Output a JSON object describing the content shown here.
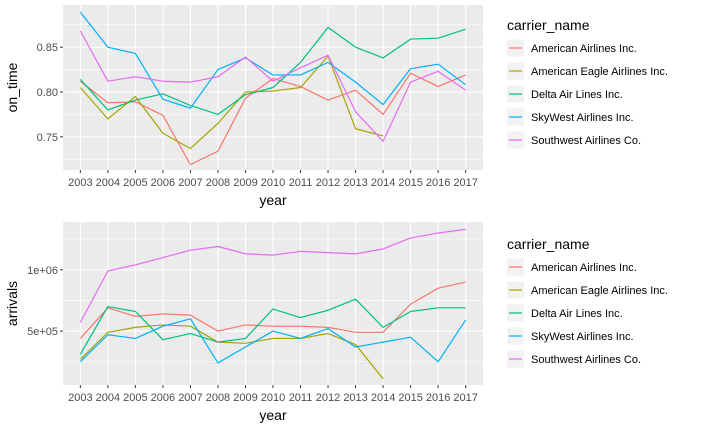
{
  "chart_data": [
    {
      "type": "line",
      "xlabel": "year",
      "ylabel": "on_time",
      "legend_title": "carrier_name",
      "legend_position": "right",
      "grid": true,
      "x": [
        2003,
        2004,
        2005,
        2006,
        2007,
        2008,
        2009,
        2010,
        2011,
        2012,
        2013,
        2014,
        2015,
        2016,
        2017
      ],
      "x_ticks": [
        "2003",
        "2004",
        "2005",
        "2006",
        "2007",
        "2008",
        "2009",
        "2010",
        "2011",
        "2012",
        "2013",
        "2014",
        "2015",
        "2016",
        "2017"
      ],
      "y_ticks": [
        {
          "value": 0.75,
          "label": "0.75"
        },
        {
          "value": 0.8,
          "label": "0.80"
        },
        {
          "value": 0.85,
          "label": "0.85"
        }
      ],
      "ylim": [
        0.713,
        0.897
      ],
      "series": [
        {
          "name": "American Airlines Inc.",
          "color": "#F8766D",
          "values": [
            0.812,
            0.788,
            0.789,
            0.774,
            0.719,
            0.734,
            0.793,
            0.815,
            0.806,
            0.791,
            0.802,
            0.775,
            0.821,
            0.806,
            0.819
          ]
        },
        {
          "name": "American Eagle Airlines Inc.",
          "color": "#A3A500",
          "values": [
            0.805,
            0.77,
            0.795,
            0.754,
            0.737,
            0.765,
            0.8,
            0.801,
            0.805,
            0.84,
            0.759,
            0.751,
            null,
            null,
            null
          ]
        },
        {
          "name": "Delta Air Lines Inc.",
          "color": "#00BF7D",
          "values": [
            0.814,
            0.78,
            0.791,
            0.798,
            0.785,
            0.775,
            0.797,
            0.805,
            0.833,
            0.872,
            0.85,
            0.838,
            0.859,
            0.86,
            0.87
          ]
        },
        {
          "name": "SkyWest Airlines Inc.",
          "color": "#00B0F6",
          "values": [
            0.889,
            0.85,
            0.843,
            0.792,
            0.782,
            0.825,
            0.838,
            0.819,
            0.819,
            0.833,
            0.811,
            0.786,
            0.826,
            0.831,
            0.808
          ]
        },
        {
          "name": "Southwest Airlines Co.",
          "color": "#E76BF3",
          "values": [
            0.868,
            0.812,
            0.817,
            0.812,
            0.811,
            0.817,
            0.839,
            0.812,
            0.827,
            0.841,
            0.778,
            0.745,
            0.811,
            0.823,
            0.802
          ]
        }
      ]
    },
    {
      "type": "line",
      "xlabel": "year",
      "ylabel": "arrivals",
      "legend_title": "carrier_name",
      "legend_position": "right",
      "grid": true,
      "x": [
        2003,
        2004,
        2005,
        2006,
        2007,
        2008,
        2009,
        2010,
        2011,
        2012,
        2013,
        2014,
        2015,
        2016,
        2017
      ],
      "x_ticks": [
        "2003",
        "2004",
        "2005",
        "2006",
        "2007",
        "2008",
        "2009",
        "2010",
        "2011",
        "2012",
        "2013",
        "2014",
        "2015",
        "2016",
        "2017"
      ],
      "y_ticks": [
        {
          "value": 500000,
          "label": "5e+05"
        },
        {
          "value": 1000000,
          "label": "1e+06"
        }
      ],
      "ylim": [
        60000,
        1390000
      ],
      "series": [
        {
          "name": "American Airlines Inc.",
          "color": "#F8766D",
          "values": [
            440000,
            690000,
            620000,
            640000,
            630000,
            500000,
            550000,
            540000,
            540000,
            530000,
            490000,
            490000,
            720000,
            850000,
            900000
          ]
        },
        {
          "name": "American Eagle Airlines Inc.",
          "color": "#A3A500",
          "values": [
            270000,
            490000,
            530000,
            550000,
            540000,
            410000,
            400000,
            440000,
            440000,
            480000,
            390000,
            110000,
            null,
            null,
            null
          ]
        },
        {
          "name": "Delta Air Lines Inc.",
          "color": "#00BF7D",
          "values": [
            310000,
            700000,
            660000,
            430000,
            480000,
            410000,
            440000,
            680000,
            610000,
            670000,
            760000,
            530000,
            660000,
            690000,
            690000
          ]
        },
        {
          "name": "SkyWest Airlines Inc.",
          "color": "#00B0F6",
          "values": [
            250000,
            470000,
            440000,
            540000,
            600000,
            240000,
            370000,
            500000,
            440000,
            520000,
            370000,
            410000,
            450000,
            250000,
            590000
          ]
        },
        {
          "name": "Southwest Airlines Co.",
          "color": "#E76BF3",
          "values": [
            570000,
            990000,
            1040000,
            1100000,
            1160000,
            1190000,
            1130000,
            1120000,
            1150000,
            1140000,
            1130000,
            1170000,
            1260000,
            1300000,
            1330000
          ]
        }
      ]
    }
  ]
}
